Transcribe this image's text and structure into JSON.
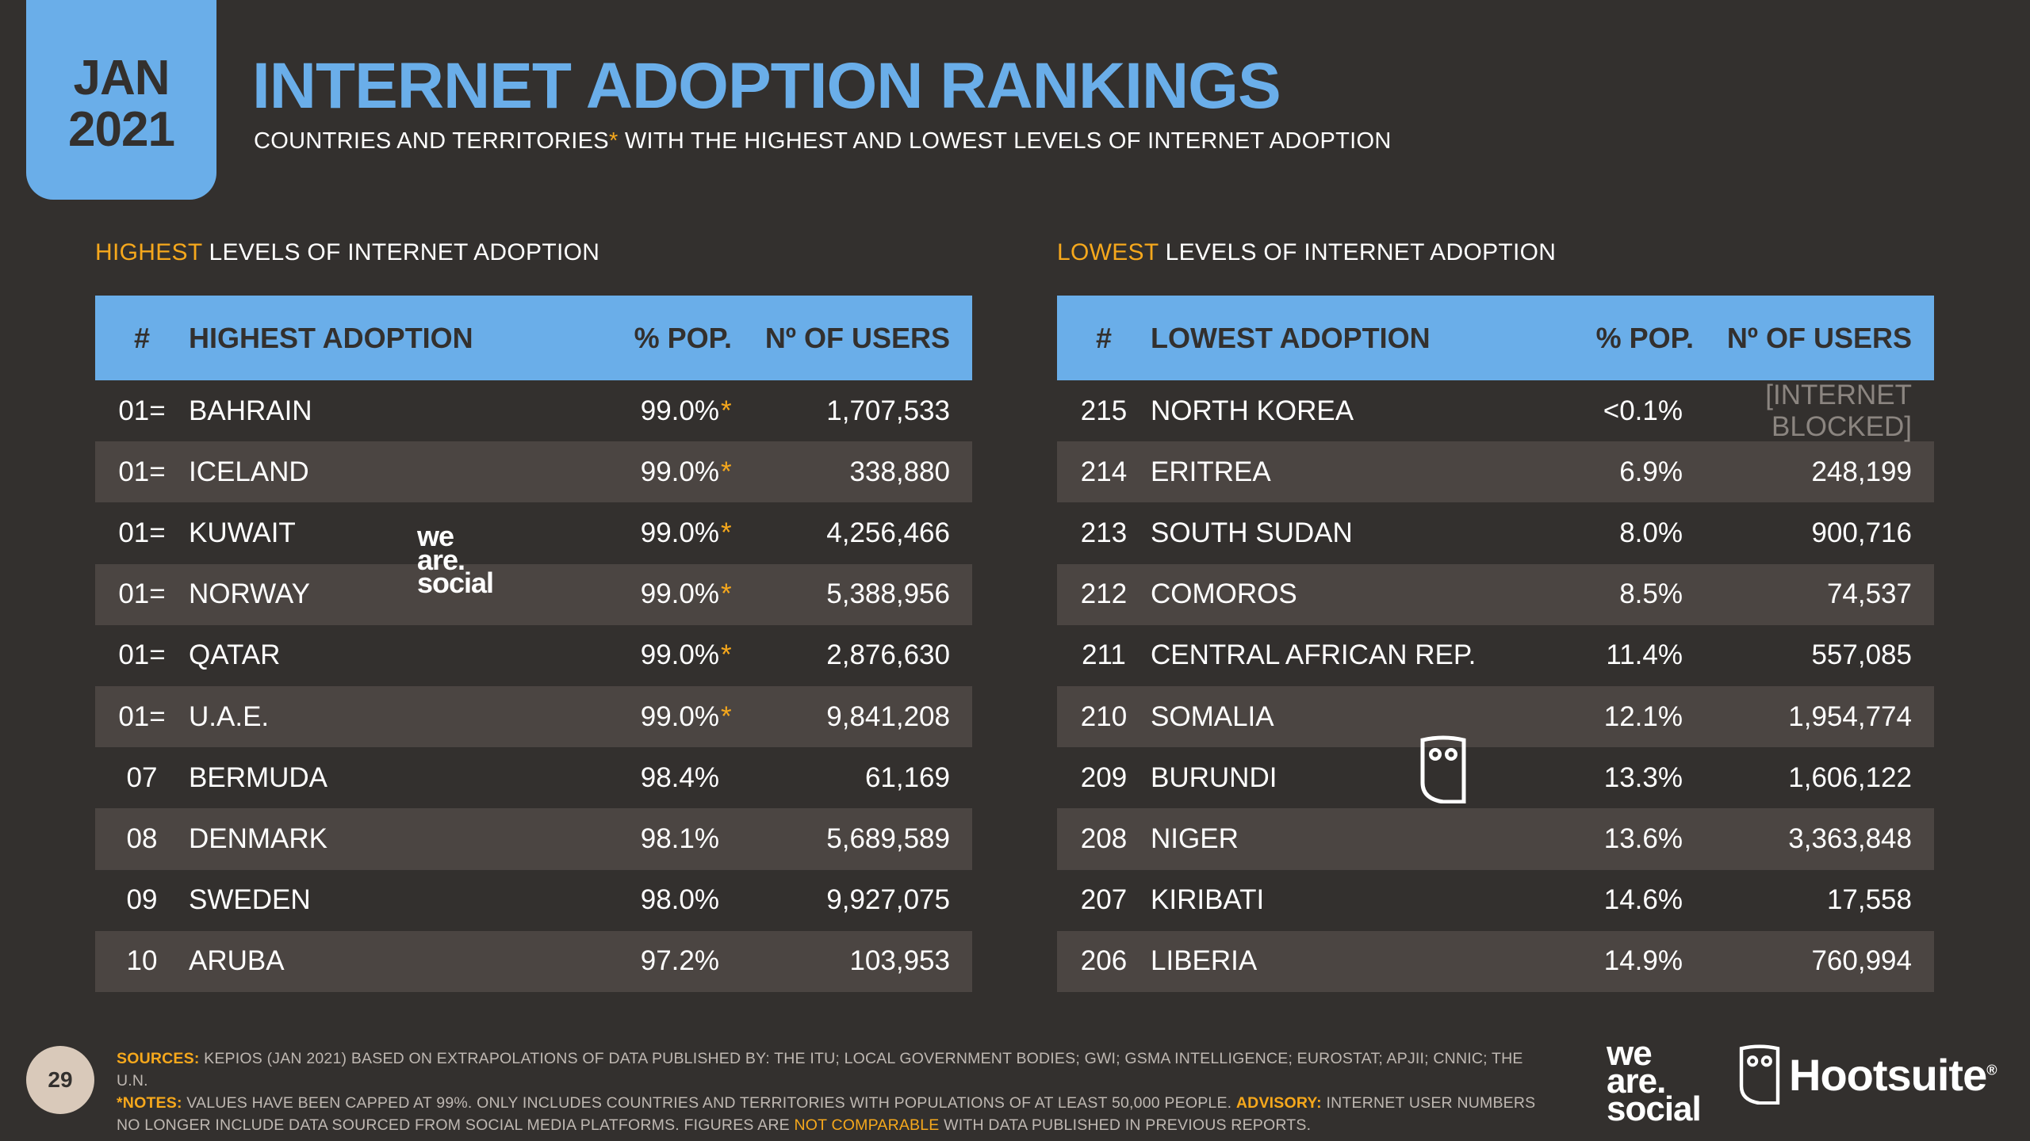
{
  "header": {
    "month": "JAN",
    "year": "2021",
    "title": "INTERNET ADOPTION RANKINGS",
    "subtitle_a": "COUNTRIES AND TERRITORIES",
    "subtitle_ast": "*",
    "subtitle_b": " WITH THE HIGHEST AND LOWEST LEVELS OF INTERNET ADOPTION"
  },
  "highest": {
    "section_accent": "HIGHEST",
    "section_rest": " LEVELS OF INTERNET ADOPTION",
    "columns": [
      "#",
      "HIGHEST ADOPTION",
      "% POP.",
      "Nº OF USERS"
    ],
    "rows": [
      {
        "rank": "01=",
        "name": "BAHRAIN",
        "pop": "99.0%",
        "ast": "*",
        "users": "1,707,533"
      },
      {
        "rank": "01=",
        "name": "ICELAND",
        "pop": "99.0%",
        "ast": "*",
        "users": "338,880"
      },
      {
        "rank": "01=",
        "name": "KUWAIT",
        "pop": "99.0%",
        "ast": "*",
        "users": "4,256,466"
      },
      {
        "rank": "01=",
        "name": "NORWAY",
        "pop": "99.0%",
        "ast": "*",
        "users": "5,388,956"
      },
      {
        "rank": "01=",
        "name": "QATAR",
        "pop": "99.0%",
        "ast": "*",
        "users": "2,876,630"
      },
      {
        "rank": "01=",
        "name": "U.A.E.",
        "pop": "99.0%",
        "ast": "*",
        "users": "9,841,208"
      },
      {
        "rank": "07",
        "name": "BERMUDA",
        "pop": "98.4%",
        "ast": "",
        "users": "61,169"
      },
      {
        "rank": "08",
        "name": "DENMARK",
        "pop": "98.1%",
        "ast": "",
        "users": "5,689,589"
      },
      {
        "rank": "09",
        "name": "SWEDEN",
        "pop": "98.0%",
        "ast": "",
        "users": "9,927,075"
      },
      {
        "rank": "10",
        "name": "ARUBA",
        "pop": "97.2%",
        "ast": "",
        "users": "103,953"
      }
    ]
  },
  "lowest": {
    "section_accent": "LOWEST",
    "section_rest": " LEVELS OF INTERNET ADOPTION",
    "columns": [
      "#",
      "LOWEST ADOPTION",
      "% POP.",
      "Nº OF USERS"
    ],
    "rows": [
      {
        "rank": "215",
        "name": "NORTH KOREA",
        "pop": "<0.1%",
        "users": "[INTERNET BLOCKED]"
      },
      {
        "rank": "214",
        "name": "ERITREA",
        "pop": "6.9%",
        "users": "248,199"
      },
      {
        "rank": "213",
        "name": "SOUTH SUDAN",
        "pop": "8.0%",
        "users": "900,716"
      },
      {
        "rank": "212",
        "name": "COMOROS",
        "pop": "8.5%",
        "users": "74,537"
      },
      {
        "rank": "211",
        "name": "CENTRAL AFRICAN REP.",
        "pop": "11.4%",
        "users": "557,085"
      },
      {
        "rank": "210",
        "name": "SOMALIA",
        "pop": "12.1%",
        "users": "1,954,774"
      },
      {
        "rank": "209",
        "name": "BURUNDI",
        "pop": "13.3%",
        "users": "1,606,122"
      },
      {
        "rank": "208",
        "name": "NIGER",
        "pop": "13.6%",
        "users": "3,363,848"
      },
      {
        "rank": "207",
        "name": "KIRIBATI",
        "pop": "14.6%",
        "users": "17,558"
      },
      {
        "rank": "206",
        "name": "LIBERIA",
        "pop": "14.9%",
        "users": "760,994"
      }
    ]
  },
  "watermark": {
    "we": "we",
    "are": "are.",
    "social": "social"
  },
  "footer": {
    "page": "29",
    "sources_label": "SOURCES:",
    "sources_text": " KEPIOS (JAN 2021) BASED ON EXTRAPOLATIONS OF DATA PUBLISHED BY: THE ITU; LOCAL GOVERNMENT BODIES; GWI; GSMA INTELLIGENCE; EUROSTAT; APJII; CNNIC; THE U.N.",
    "notes_label": "*NOTES:",
    "notes_text": " VALUES HAVE BEEN CAPPED AT 99%. ONLY INCLUDES COUNTRIES AND TERRITORIES WITH POPULATIONS OF AT LEAST 50,000 PEOPLE. ",
    "advisory_label": "ADVISORY:",
    "advisory_text": " INTERNET USER NUMBERS NO LONGER INCLUDE DATA SOURCED FROM SOCIAL MEDIA PLATFORMS. FIGURES ARE ",
    "not_comparable": "NOT COMPARABLE",
    "advisory_end": " WITH DATA PUBLISHED IN PREVIOUS REPORTS.",
    "was_we": "we",
    "was_are": "are.",
    "was_social": "social",
    "hootsuite": "Hootsuite",
    "reg": "®"
  },
  "colors": {
    "accent_blue": "#6aaee9",
    "accent_orange": "#f6a81c",
    "background": "#33302e",
    "row_alt": "#4b4542"
  }
}
